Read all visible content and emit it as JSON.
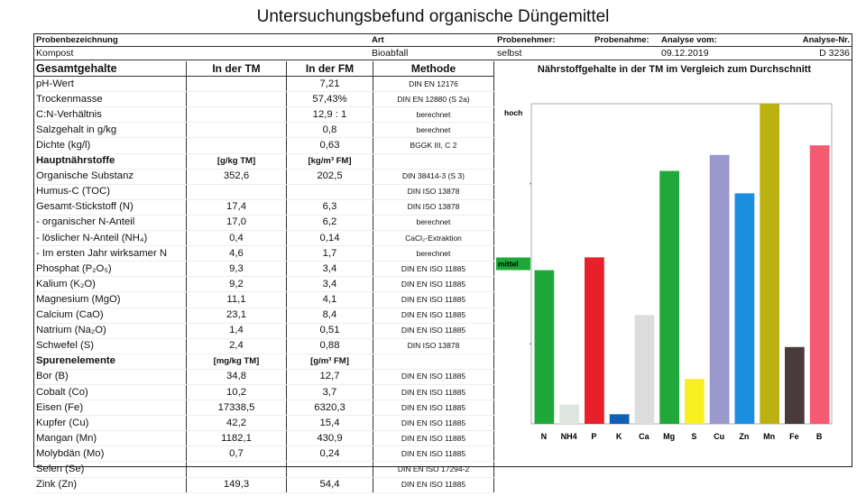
{
  "title": "Untersuchungsbefund organische Düngemittel",
  "header": {
    "probenbezeichnung_label": "Probenbezeichnung",
    "probenbezeichnung": "Kompost",
    "art_label": "Art",
    "art": "Bioabfall",
    "probenehmer_label": "Probenehmer:",
    "probenehmer": "selbst",
    "probenahme_label": "Probenahme:",
    "analyse_vom_label": "Analyse vom:",
    "analyse_vom": "09.12.2019",
    "analyse_nr_label": "Analyse-Nr.",
    "analyse_nr": "D 3236"
  },
  "table": {
    "columns": [
      "Gesamtgehalte",
      "In der TM",
      "In der FM",
      "Methode"
    ],
    "rows": [
      {
        "label": "pH-Wert",
        "tm": "",
        "fm": "7,21",
        "method": "DIN EN 12176"
      },
      {
        "label": "Trockenmasse",
        "tm": "",
        "fm": "57,43%",
        "method": "DIN EN 12880 (S 2a)"
      },
      {
        "label": "C:N-Verhältnis",
        "tm": "",
        "fm": "12,9 : 1",
        "method": "berechnet"
      },
      {
        "label": "Salzgehalt in g/kg",
        "tm": "",
        "fm": "0,8",
        "method": "berechnet"
      },
      {
        "label": "Dichte (kg/l)",
        "tm": "",
        "fm": "0,63",
        "method": "BGGK III, C 2"
      },
      {
        "section": true,
        "label": "Hauptnährstoffe",
        "tm": "[g/kg TM]",
        "fm": "[kg/m³ FM]",
        "method": ""
      },
      {
        "label": "Organische Substanz",
        "tm": "352,6",
        "fm": "202,5",
        "method": "DIN 38414-3 (S 3)"
      },
      {
        "label": "Humus-C (TOC)",
        "tm": "",
        "fm": "",
        "method": "DIN ISO 13878"
      },
      {
        "label": "Gesamt-Stickstoff (N)",
        "tm": "17,4",
        "fm": "6,3",
        "method": "DIN ISO 13878"
      },
      {
        "label": "- organischer N-Anteil",
        "tm": "17,0",
        "fm": "6,2",
        "method": "berechnet"
      },
      {
        "label": "- löslicher N-Anteil (NH₄)",
        "tm": "0,4",
        "fm": "0,14",
        "method": "CaCl₂-Extraktion"
      },
      {
        "label": "- Im ersten Jahr wirksamer N",
        "tm": "4,6",
        "fm": "1,7",
        "method": "berechnet"
      },
      {
        "label": "Phosphat (P₂O₅)",
        "tm": "9,3",
        "fm": "3,4",
        "method": "DIN EN ISO 11885"
      },
      {
        "label": "Kalium (K₂O)",
        "tm": "9,2",
        "fm": "3,4",
        "method": "DIN EN ISO 11885"
      },
      {
        "label": "Magnesium (MgO)",
        "tm": "11,1",
        "fm": "4,1",
        "method": "DIN EN ISO 11885"
      },
      {
        "label": "Calcium (CaO)",
        "tm": "23,1",
        "fm": "8,4",
        "method": "DIN EN ISO 11885"
      },
      {
        "label": "Natrium (Na₂O)",
        "tm": "1,4",
        "fm": "0,51",
        "method": "DIN EN ISO 11885"
      },
      {
        "label": "Schwefel (S)",
        "tm": "2,4",
        "fm": "0,88",
        "method": "DIN ISO 13878"
      },
      {
        "section": true,
        "label": "Spurenelemente",
        "tm": "[mg/kg TM]",
        "fm": "[g/m³ FM]",
        "method": ""
      },
      {
        "label": "Bor (B)",
        "tm": "34,8",
        "fm": "12,7",
        "method": "DIN EN ISO 11885"
      },
      {
        "label": "Cobalt (Co)",
        "tm": "10,2",
        "fm": "3,7",
        "method": "DIN EN ISO 11885"
      },
      {
        "label": "Eisen (Fe)",
        "tm": "17338,5",
        "fm": "6320,3",
        "method": "DIN EN ISO 11885"
      },
      {
        "label": "Kupfer (Cu)",
        "tm": "42,2",
        "fm": "15,4",
        "method": "DIN EN ISO 11885"
      },
      {
        "label": "Mangan (Mn)",
        "tm": "1182,1",
        "fm": "430,9",
        "method": "DIN EN ISO 11885"
      },
      {
        "label": "Molybdän (Mo)",
        "tm": "0,7",
        "fm": "0,24",
        "method": "DIN EN ISO 11885"
      },
      {
        "label": "Selen (Se)",
        "tm": "",
        "fm": "",
        "method": "DIN EN ISO 17294-2"
      },
      {
        "label": "Zink (Zn)",
        "tm": "149,3",
        "fm": "54,4",
        "method": "DIN EN ISO 11885"
      }
    ]
  },
  "chart_data": {
    "type": "bar",
    "title": "Nährstoffgehalte in der TM  im Vergleich zum Durchschnitt",
    "categories": [
      "N",
      "NH4",
      "P",
      "K",
      "Ca",
      "Mg",
      "S",
      "Cu",
      "Zn",
      "Mn",
      "Fe",
      "B"
    ],
    "values": [
      48,
      6,
      52,
      3,
      34,
      79,
      14,
      84,
      72,
      100,
      24,
      87
    ],
    "colors": [
      "#1fa83a",
      "#dfe6df",
      "#e8202a",
      "#1060b8",
      "#dcdcdc",
      "#20a83a",
      "#f8f020",
      "#9a98cc",
      "#1c8ee0",
      "#bdb012",
      "#4a3a3c",
      "#f45a72"
    ],
    "ylim": [
      0,
      100
    ],
    "level_labels": {
      "hoch": "hoch",
      "mittel": "mittel"
    },
    "level_values": {
      "hoch": 100,
      "mittel": 50
    },
    "mittel_color": "#1fa83a",
    "grid": false
  }
}
